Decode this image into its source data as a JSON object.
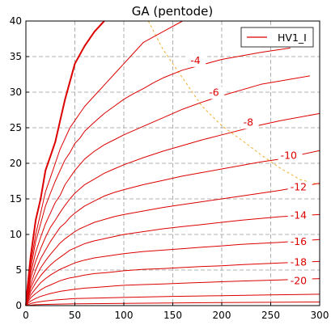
{
  "chart_data": {
    "type": "line",
    "title": "GA (pentode)",
    "xlabel": "",
    "ylabel": "",
    "xlim": [
      0,
      300
    ],
    "ylim": [
      0,
      40
    ],
    "x_ticks": [
      0,
      50,
      100,
      150,
      200,
      250,
      300
    ],
    "y_ticks": [
      0,
      5,
      10,
      15,
      20,
      25,
      30,
      35,
      40
    ],
    "grid": true,
    "legend": {
      "position": "top-right",
      "entries": [
        "HV1_I"
      ]
    },
    "colors": {
      "series": "#dd0000",
      "load_line": "#f0b030"
    },
    "series": [
      {
        "label": "",
        "bold": true,
        "points": [
          [
            0,
            0
          ],
          [
            2,
            3
          ],
          [
            5,
            7
          ],
          [
            10,
            12
          ],
          [
            15,
            15
          ],
          [
            20,
            19
          ],
          [
            25,
            21
          ],
          [
            30,
            23
          ],
          [
            35,
            26
          ],
          [
            40,
            29
          ],
          [
            50,
            34
          ],
          [
            60,
            36.5
          ],
          [
            70,
            38.5
          ],
          [
            80,
            40
          ]
        ]
      },
      {
        "label": "",
        "points": [
          [
            0,
            0
          ],
          [
            2,
            2.5
          ],
          [
            5,
            6
          ],
          [
            10,
            10
          ],
          [
            15,
            13
          ],
          [
            20,
            16
          ],
          [
            25,
            18
          ],
          [
            30,
            20
          ],
          [
            35,
            22
          ],
          [
            40,
            23.5
          ],
          [
            45,
            25
          ],
          [
            50,
            26
          ],
          [
            55,
            27
          ],
          [
            60,
            28
          ],
          [
            70,
            29.5
          ],
          [
            80,
            31
          ],
          [
            90,
            32.5
          ],
          [
            100,
            34
          ],
          [
            110,
            35.5
          ],
          [
            120,
            37
          ],
          [
            140,
            38.5
          ],
          [
            160,
            40
          ]
        ]
      },
      {
        "label": "-4",
        "label_pos": [
          168,
          34
        ],
        "points": [
          [
            0,
            0
          ],
          [
            2,
            2.2
          ],
          [
            5,
            5.2
          ],
          [
            10,
            9
          ],
          [
            15,
            11.5
          ],
          [
            20,
            14
          ],
          [
            25,
            15.8
          ],
          [
            30,
            17.5
          ],
          [
            35,
            19
          ],
          [
            40,
            20.5
          ],
          [
            45,
            21.5
          ],
          [
            50,
            22.8
          ],
          [
            55,
            23.5
          ],
          [
            60,
            24.5
          ],
          [
            70,
            25.8
          ],
          [
            80,
            27
          ],
          [
            90,
            28
          ],
          [
            100,
            29
          ],
          [
            110,
            29.8
          ],
          [
            120,
            30.5
          ],
          [
            130,
            31.3
          ],
          [
            140,
            32
          ],
          [
            160,
            33.1
          ],
          [
            200,
            34.6
          ],
          [
            240,
            35.6
          ],
          [
            270,
            36.2
          ]
        ]
      },
      {
        "label": "-6",
        "label_pos": [
          187,
          29.5
        ],
        "points": [
          [
            0,
            0
          ],
          [
            2,
            1.9
          ],
          [
            5,
            4.5
          ],
          [
            10,
            7.5
          ],
          [
            15,
            9.6
          ],
          [
            20,
            11.5
          ],
          [
            25,
            13
          ],
          [
            30,
            14.5
          ],
          [
            35,
            15.5
          ],
          [
            40,
            17
          ],
          [
            45,
            18
          ],
          [
            50,
            19
          ],
          [
            55,
            19.8
          ],
          [
            60,
            20.6
          ],
          [
            70,
            21.7
          ],
          [
            80,
            22.6
          ],
          [
            90,
            23.3
          ],
          [
            100,
            24
          ],
          [
            120,
            25.2
          ],
          [
            140,
            26.4
          ],
          [
            160,
            27.6
          ],
          [
            180,
            28.6
          ],
          [
            200,
            29.5
          ],
          [
            240,
            31.1
          ],
          [
            290,
            32.3
          ]
        ]
      },
      {
        "label": "-8",
        "label_pos": [
          222,
          25.3
        ],
        "points": [
          [
            0,
            0
          ],
          [
            2,
            1.6
          ],
          [
            5,
            3.8
          ],
          [
            10,
            6.2
          ],
          [
            15,
            8
          ],
          [
            20,
            9.6
          ],
          [
            25,
            11
          ],
          [
            30,
            12
          ],
          [
            35,
            13.1
          ],
          [
            40,
            14.1
          ],
          [
            45,
            15
          ],
          [
            50,
            15.8
          ],
          [
            55,
            16.4
          ],
          [
            60,
            17
          ],
          [
            70,
            17.8
          ],
          [
            80,
            18.6
          ],
          [
            90,
            19.2
          ],
          [
            100,
            19.8
          ],
          [
            120,
            20.8
          ],
          [
            140,
            21.7
          ],
          [
            160,
            22.5
          ],
          [
            180,
            23.3
          ],
          [
            200,
            24
          ],
          [
            240,
            25.4
          ],
          [
            260,
            26
          ],
          [
            300,
            27
          ]
        ]
      },
      {
        "label": "-10",
        "label_pos": [
          260,
          20.6
        ],
        "points": [
          [
            0,
            0
          ],
          [
            2,
            1.3
          ],
          [
            5,
            3
          ],
          [
            10,
            5
          ],
          [
            15,
            6.6
          ],
          [
            20,
            7.8
          ],
          [
            25,
            9
          ],
          [
            30,
            10
          ],
          [
            35,
            11
          ],
          [
            40,
            11.6
          ],
          [
            45,
            12.4
          ],
          [
            50,
            13
          ],
          [
            55,
            13.5
          ],
          [
            60,
            14
          ],
          [
            70,
            14.7
          ],
          [
            80,
            15.4
          ],
          [
            90,
            15.9
          ],
          [
            100,
            16.3
          ],
          [
            120,
            17
          ],
          [
            140,
            17.6
          ],
          [
            160,
            18.2
          ],
          [
            180,
            18.7
          ],
          [
            200,
            19.2
          ],
          [
            240,
            20.2
          ],
          [
            260,
            20.6
          ],
          [
            300,
            21.8
          ]
        ]
      },
      {
        "label": "-12",
        "label_pos": [
          270,
          16.2
        ],
        "points": [
          [
            0,
            0
          ],
          [
            2,
            1.1
          ],
          [
            5,
            2.5
          ],
          [
            10,
            4
          ],
          [
            15,
            5.3
          ],
          [
            20,
            6.3
          ],
          [
            25,
            7.2
          ],
          [
            30,
            8
          ],
          [
            35,
            8.8
          ],
          [
            40,
            9.4
          ],
          [
            45,
            9.9
          ],
          [
            50,
            10.4
          ],
          [
            55,
            10.8
          ],
          [
            60,
            11.1
          ],
          [
            70,
            11.7
          ],
          [
            80,
            12.1
          ],
          [
            90,
            12.5
          ],
          [
            100,
            12.8
          ],
          [
            120,
            13.3
          ],
          [
            140,
            13.8
          ],
          [
            160,
            14.2
          ],
          [
            180,
            14.6
          ],
          [
            200,
            15
          ],
          [
            220,
            15.4
          ],
          [
            260,
            16.2
          ],
          [
            300,
            17.2
          ]
        ]
      },
      {
        "label": "-14",
        "label_pos": [
          270,
          12.2
        ],
        "points": [
          [
            0,
            0
          ],
          [
            2,
            0.9
          ],
          [
            5,
            2
          ],
          [
            10,
            3.2
          ],
          [
            15,
            4.2
          ],
          [
            20,
            5
          ],
          [
            25,
            5.7
          ],
          [
            30,
            6.3
          ],
          [
            35,
            6.8
          ],
          [
            40,
            7.3
          ],
          [
            45,
            7.8
          ],
          [
            50,
            8.1
          ],
          [
            55,
            8.4
          ],
          [
            60,
            8.7
          ],
          [
            70,
            9.1
          ],
          [
            80,
            9.4
          ],
          [
            90,
            9.7
          ],
          [
            100,
            10
          ],
          [
            120,
            10.4
          ],
          [
            140,
            10.8
          ],
          [
            160,
            11.1
          ],
          [
            180,
            11.4
          ],
          [
            200,
            11.7
          ],
          [
            220,
            12
          ],
          [
            260,
            12.5
          ],
          [
            300,
            12.8
          ]
        ]
      },
      {
        "label": "-16",
        "label_pos": [
          270,
          8.5
        ],
        "points": [
          [
            0,
            0
          ],
          [
            2,
            0.7
          ],
          [
            5,
            1.5
          ],
          [
            10,
            2.4
          ],
          [
            15,
            3.2
          ],
          [
            20,
            3.8
          ],
          [
            25,
            4.3
          ],
          [
            30,
            4.7
          ],
          [
            35,
            5.1
          ],
          [
            40,
            5.4
          ],
          [
            45,
            5.7
          ],
          [
            50,
            6
          ],
          [
            55,
            6.2
          ],
          [
            60,
            6.4
          ],
          [
            70,
            6.7
          ],
          [
            80,
            6.9
          ],
          [
            90,
            7.1
          ],
          [
            100,
            7.3
          ],
          [
            120,
            7.6
          ],
          [
            140,
            7.8
          ],
          [
            160,
            8
          ],
          [
            180,
            8.2
          ],
          [
            200,
            8.4
          ],
          [
            220,
            8.6
          ],
          [
            260,
            8.9
          ],
          [
            300,
            9.3
          ]
        ]
      },
      {
        "label": "-18",
        "label_pos": [
          270,
          5.6
        ],
        "points": [
          [
            0,
            0
          ],
          [
            2,
            0.5
          ],
          [
            5,
            1.1
          ],
          [
            10,
            1.7
          ],
          [
            15,
            2.2
          ],
          [
            20,
            2.6
          ],
          [
            25,
            2.9
          ],
          [
            30,
            3.2
          ],
          [
            35,
            3.5
          ],
          [
            40,
            3.7
          ],
          [
            45,
            3.9
          ],
          [
            50,
            4
          ],
          [
            55,
            4.15
          ],
          [
            60,
            4.3
          ],
          [
            70,
            4.5
          ],
          [
            80,
            4.6
          ],
          [
            90,
            4.75
          ],
          [
            100,
            4.9
          ],
          [
            120,
            5.1
          ],
          [
            140,
            5.2
          ],
          [
            160,
            5.35
          ],
          [
            180,
            5.5
          ],
          [
            200,
            5.6
          ],
          [
            220,
            5.75
          ],
          [
            260,
            6
          ],
          [
            300,
            6.2
          ]
        ]
      },
      {
        "label": "-20",
        "label_pos": [
          270,
          3
        ],
        "points": [
          [
            0,
            0
          ],
          [
            2,
            0.3
          ],
          [
            5,
            0.65
          ],
          [
            10,
            1
          ],
          [
            15,
            1.3
          ],
          [
            20,
            1.5
          ],
          [
            25,
            1.7
          ],
          [
            30,
            1.85
          ],
          [
            35,
            2
          ],
          [
            40,
            2.1
          ],
          [
            45,
            2.2
          ],
          [
            50,
            2.3
          ],
          [
            60,
            2.45
          ],
          [
            70,
            2.55
          ],
          [
            80,
            2.65
          ],
          [
            90,
            2.75
          ],
          [
            100,
            2.85
          ],
          [
            120,
            2.95
          ],
          [
            140,
            3.05
          ],
          [
            160,
            3.15
          ],
          [
            180,
            3.25
          ],
          [
            200,
            3.35
          ],
          [
            220,
            3.45
          ],
          [
            260,
            3.6
          ],
          [
            300,
            3.8
          ]
        ]
      },
      {
        "label": "",
        "points": [
          [
            0,
            0
          ],
          [
            5,
            0.3
          ],
          [
            10,
            0.45
          ],
          [
            20,
            0.65
          ],
          [
            30,
            0.8
          ],
          [
            40,
            0.9
          ],
          [
            50,
            1
          ],
          [
            70,
            1.05
          ],
          [
            100,
            1.15
          ],
          [
            150,
            1.3
          ],
          [
            200,
            1.4
          ],
          [
            250,
            1.5
          ],
          [
            300,
            1.6
          ]
        ]
      },
      {
        "label": "",
        "points": [
          [
            0,
            0
          ],
          [
            10,
            0.12
          ],
          [
            30,
            0.2
          ],
          [
            50,
            0.25
          ],
          [
            100,
            0.32
          ],
          [
            150,
            0.38
          ],
          [
            200,
            0.43
          ],
          [
            300,
            0.5
          ]
        ]
      }
    ],
    "load_line": {
      "style": "dashed",
      "points": [
        [
          125,
          40
        ],
        [
          140,
          36
        ],
        [
          160,
          32
        ],
        [
          180,
          28
        ],
        [
          200,
          25.3
        ],
        [
          220,
          23.3
        ],
        [
          240,
          21.2
        ],
        [
          260,
          19.3
        ],
        [
          280,
          17.7
        ],
        [
          300,
          17
        ]
      ]
    }
  }
}
